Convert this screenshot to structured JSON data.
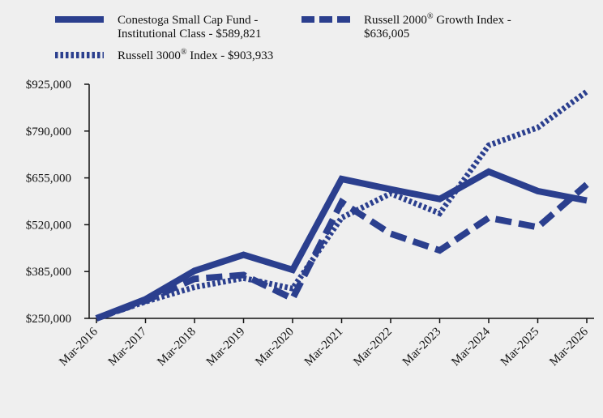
{
  "chart_data": {
    "type": "line",
    "title": "",
    "xlabel": "",
    "ylabel": "",
    "categories": [
      "Mar-2016",
      "Mar-2017",
      "Mar-2018",
      "Mar-2019",
      "Mar-2020",
      "Mar-2021",
      "Mar-2022",
      "Mar-2023",
      "Mar-2024",
      "Mar-2025",
      "Mar-2026"
    ],
    "ylim": [
      250000,
      925000
    ],
    "y_ticks": [
      "$250,000",
      "$385,000",
      "$520,000",
      "$655,000",
      "$790,000",
      "$925,000"
    ],
    "y_tick_values": [
      250000,
      385000,
      520000,
      655000,
      790000,
      925000
    ],
    "legend_placement": "top",
    "grid": false,
    "series": [
      {
        "name": "Conestoga Small Cap Fund - Institutional Class - $589,821",
        "legend_line1": "Conestoga Small Cap Fund -",
        "legend_line2": "Institutional Class - $589,821",
        "style": "solid",
        "color": "#2b3f8e",
        "values": [
          250000,
          305000,
          387000,
          433000,
          390000,
          652000,
          622000,
          594000,
          673000,
          617000,
          589821
        ]
      },
      {
        "name": "Russell 2000® Growth Index - $636,005",
        "legend_line1_pre": "Russell 2000",
        "legend_sup": "®",
        "legend_line1_post": " Growth Index -",
        "legend_line2": "$636,005",
        "style": "dashed",
        "color": "#2b3f8e",
        "values": [
          250000,
          301000,
          364000,
          375000,
          307000,
          585000,
          494000,
          446000,
          540000,
          513000,
          636005
        ]
      },
      {
        "name": "Russell 3000® Index - $903,933",
        "legend_line1_pre": "Russell 3000",
        "legend_sup": "®",
        "legend_line1_post": " Index - $903,933",
        "style": "dotted",
        "color": "#2b3f8e",
        "values": [
          250000,
          298000,
          340000,
          366000,
          336000,
          540000,
          610000,
          553000,
          749000,
          800000,
          903933
        ]
      }
    ]
  }
}
